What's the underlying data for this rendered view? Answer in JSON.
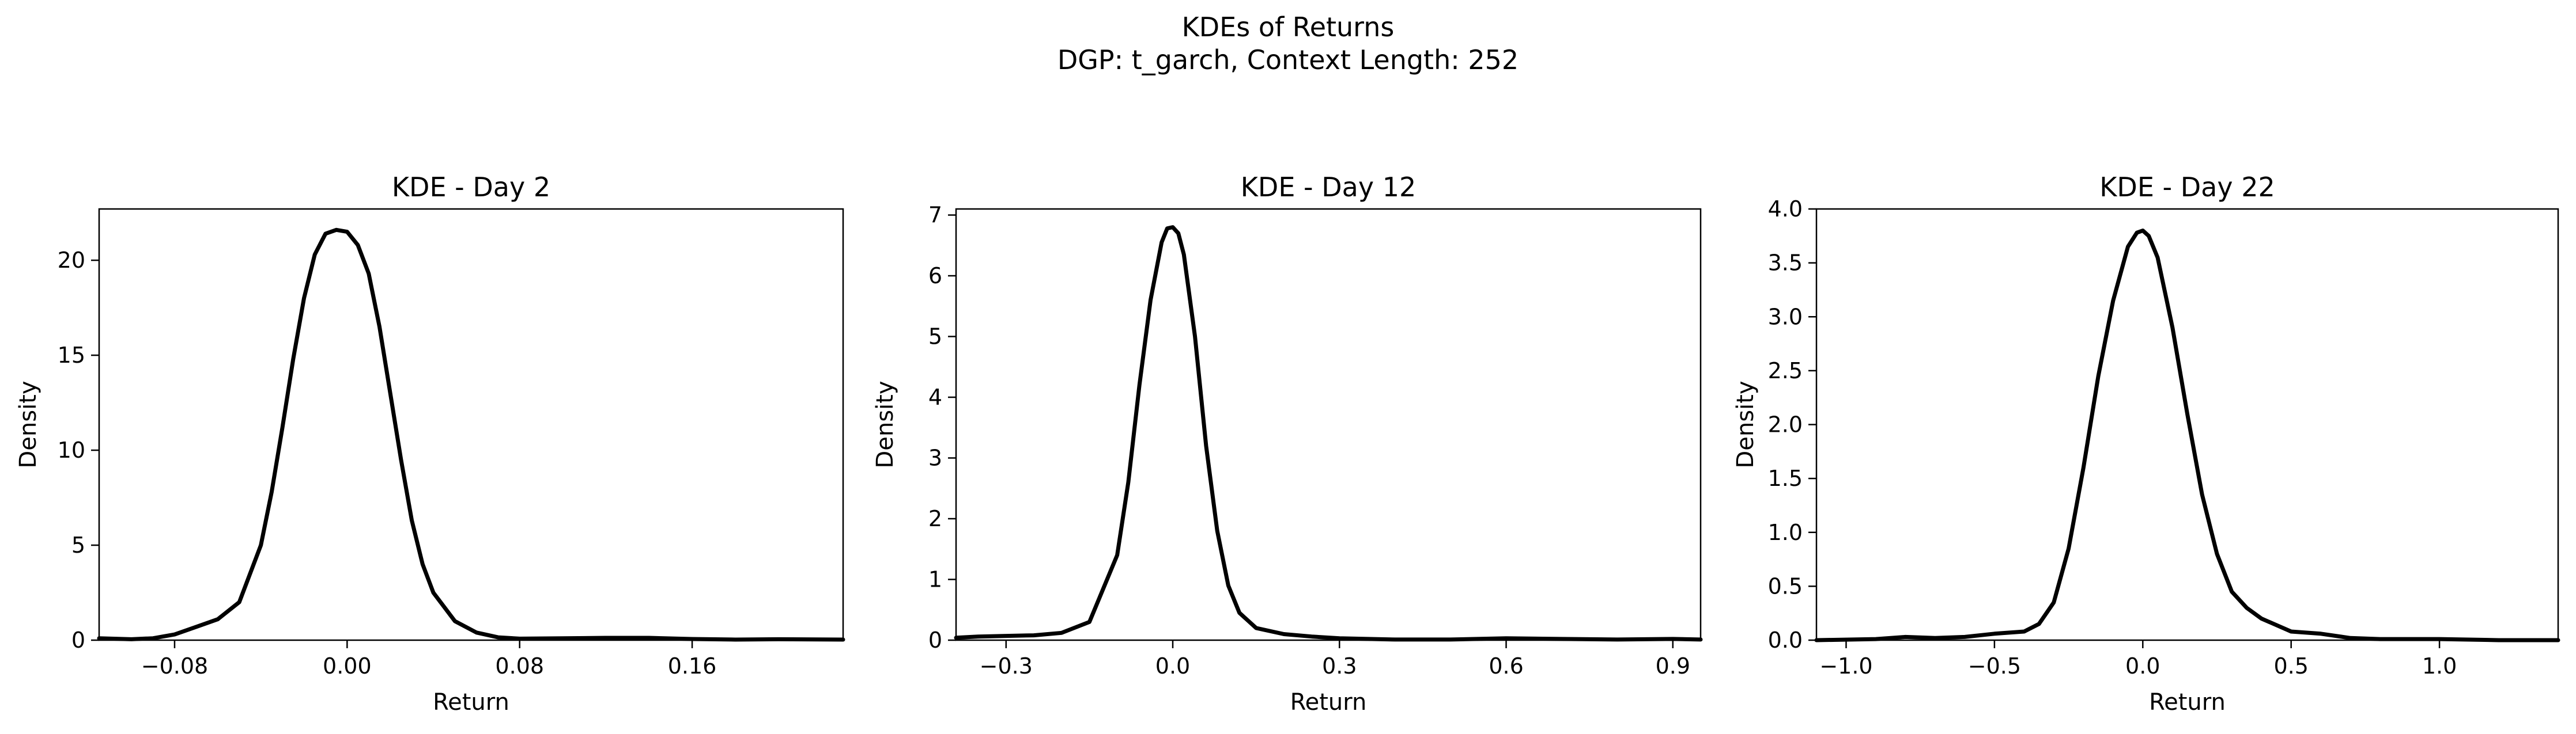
{
  "figure": {
    "title_line1": "KDEs of Returns",
    "title_line2": "DGP: t_garch, Context Length: 252"
  },
  "chart_data": [
    {
      "type": "line",
      "title": "KDE - Day 2",
      "xlabel": "Return",
      "ylabel": "Density",
      "xlim": [
        -0.115,
        0.23
      ],
      "ylim": [
        0,
        22.7
      ],
      "xticks": [
        -0.08,
        0.0,
        0.08,
        0.16
      ],
      "xtick_labels": [
        "−0.08",
        "0.00",
        "0.08",
        "0.16"
      ],
      "yticks": [
        0,
        5,
        10,
        15,
        20
      ],
      "ytick_labels": [
        "0",
        "5",
        "10",
        "15",
        "20"
      ],
      "grid": false,
      "legend": "none",
      "line_color": "#000000",
      "x": [
        -0.115,
        -0.1,
        -0.09,
        -0.08,
        -0.07,
        -0.06,
        -0.05,
        -0.04,
        -0.035,
        -0.03,
        -0.025,
        -0.02,
        -0.015,
        -0.01,
        -0.005,
        0.0,
        0.005,
        0.01,
        0.015,
        0.02,
        0.025,
        0.03,
        0.035,
        0.04,
        0.05,
        0.06,
        0.07,
        0.08,
        0.1,
        0.12,
        0.14,
        0.16,
        0.18,
        0.2,
        0.23
      ],
      "y": [
        0.1,
        0.05,
        0.1,
        0.3,
        0.7,
        1.1,
        2.0,
        5.0,
        7.8,
        11.2,
        14.8,
        18.0,
        20.3,
        21.4,
        21.6,
        21.5,
        20.8,
        19.3,
        16.5,
        13.0,
        9.5,
        6.3,
        4.0,
        2.5,
        1.0,
        0.4,
        0.15,
        0.08,
        0.1,
        0.12,
        0.12,
        0.06,
        0.03,
        0.05,
        0.03
      ]
    },
    {
      "type": "line",
      "title": "KDE - Day 12",
      "xlabel": "Return",
      "ylabel": "Density",
      "xlim": [
        -0.39,
        0.95
      ],
      "ylim": [
        0,
        7.1
      ],
      "xticks": [
        -0.3,
        0.0,
        0.3,
        0.6,
        0.9
      ],
      "xtick_labels": [
        "−0.3",
        "0.0",
        "0.3",
        "0.6",
        "0.9"
      ],
      "yticks": [
        0,
        1,
        2,
        3,
        4,
        5,
        6,
        7
      ],
      "ytick_labels": [
        "0",
        "1",
        "2",
        "3",
        "4",
        "5",
        "6",
        "7"
      ],
      "grid": false,
      "legend": "none",
      "line_color": "#000000",
      "x": [
        -0.39,
        -0.35,
        -0.3,
        -0.25,
        -0.2,
        -0.15,
        -0.1,
        -0.08,
        -0.06,
        -0.04,
        -0.02,
        -0.01,
        0.0,
        0.01,
        0.02,
        0.04,
        0.06,
        0.08,
        0.1,
        0.12,
        0.15,
        0.2,
        0.25,
        0.3,
        0.4,
        0.5,
        0.6,
        0.7,
        0.8,
        0.9,
        0.95
      ],
      "y": [
        0.04,
        0.06,
        0.07,
        0.08,
        0.12,
        0.3,
        1.4,
        2.6,
        4.2,
        5.6,
        6.55,
        6.78,
        6.8,
        6.7,
        6.35,
        5.0,
        3.2,
        1.8,
        0.9,
        0.45,
        0.2,
        0.1,
        0.06,
        0.03,
        0.01,
        0.01,
        0.03,
        0.02,
        0.01,
        0.02,
        0.01
      ]
    },
    {
      "type": "line",
      "title": "KDE - Day 22",
      "xlabel": "Return",
      "ylabel": "Density",
      "xlim": [
        -1.1,
        1.4
      ],
      "ylim": [
        0,
        4.0
      ],
      "xticks": [
        -1.0,
        -0.5,
        0.0,
        0.5,
        1.0
      ],
      "xtick_labels": [
        "−1.0",
        "−0.5",
        "0.0",
        "0.5",
        "1.0"
      ],
      "yticks": [
        0.0,
        0.5,
        1.0,
        1.5,
        2.0,
        2.5,
        3.0,
        3.5,
        4.0
      ],
      "ytick_labels": [
        "0.0",
        "0.5",
        "1.0",
        "1.5",
        "2.0",
        "2.5",
        "3.0",
        "3.5",
        "4.0"
      ],
      "grid": false,
      "legend": "none",
      "line_color": "#000000",
      "x": [
        -1.1,
        -0.9,
        -0.8,
        -0.7,
        -0.6,
        -0.5,
        -0.4,
        -0.35,
        -0.3,
        -0.25,
        -0.2,
        -0.15,
        -0.1,
        -0.05,
        -0.02,
        0.0,
        0.02,
        0.05,
        0.1,
        0.15,
        0.2,
        0.25,
        0.3,
        0.35,
        0.4,
        0.5,
        0.6,
        0.7,
        0.8,
        1.0,
        1.2,
        1.4
      ],
      "y": [
        0.0,
        0.01,
        0.03,
        0.02,
        0.03,
        0.06,
        0.08,
        0.15,
        0.35,
        0.85,
        1.6,
        2.45,
        3.15,
        3.65,
        3.78,
        3.8,
        3.75,
        3.55,
        2.9,
        2.1,
        1.35,
        0.8,
        0.45,
        0.3,
        0.2,
        0.08,
        0.06,
        0.02,
        0.01,
        0.01,
        0.0,
        0.0
      ]
    }
  ]
}
